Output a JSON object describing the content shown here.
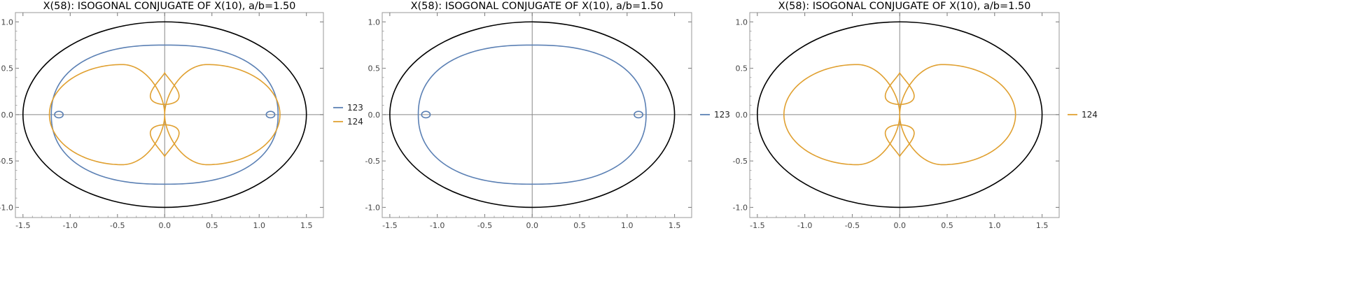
{
  "chart_data": [
    {
      "type": "line",
      "title": "X(58): ISOGONAL CONJUGATE OF X(10), a/b=1.50",
      "x_ticks": [
        "-1.5",
        "-1.0",
        "-0.5",
        "0.0",
        "0.5",
        "1.0",
        "1.5"
      ],
      "y_ticks": [
        "-1.0",
        "-0.5",
        "0.0",
        "0.5",
        "1.0"
      ],
      "xlim": [
        -1.58,
        1.68
      ],
      "ylim": [
        -1.11,
        1.1
      ],
      "grid": false,
      "legend_position": "right",
      "reference_ellipse": {
        "rx": 1.5,
        "ry": 1.0,
        "color": "#000000"
      },
      "series": [
        {
          "name": "123",
          "color": "#5b80b4",
          "type": "locus-123",
          "outer_rx": 1.2,
          "outer_ry": 0.75,
          "loops": [
            {
              "cx": -1.12,
              "cy": 0.0,
              "r": 0.035
            },
            {
              "cx": 1.12,
              "cy": 0.0,
              "r": 0.035
            }
          ]
        },
        {
          "name": "124",
          "color": "#e0a030",
          "type": "locus-124",
          "lobe_cx": 0.45,
          "lobe_ry": 0.54,
          "outer_x": 1.22,
          "inner_loop_top": 0.11,
          "inner_loop_peak": 0.45
        }
      ]
    },
    {
      "type": "line",
      "title": "X(58): ISOGONAL CONJUGATE OF X(10), a/b=1.50",
      "x_ticks": [
        "-1.5",
        "-1.0",
        "-0.5",
        "0.0",
        "0.5",
        "1.0",
        "1.5"
      ],
      "y_ticks": [
        "-1.0",
        "-0.5",
        "0.0",
        "0.5",
        "1.0"
      ],
      "xlim": [
        -1.58,
        1.68
      ],
      "ylim": [
        -1.11,
        1.1
      ],
      "grid": false,
      "legend_position": "right",
      "reference_ellipse": {
        "rx": 1.5,
        "ry": 1.0,
        "color": "#000000"
      },
      "series": [
        {
          "name": "123",
          "color": "#5b80b4",
          "type": "locus-123",
          "outer_rx": 1.2,
          "outer_ry": 0.75,
          "loops": [
            {
              "cx": -1.12,
              "cy": 0.0,
              "r": 0.035
            },
            {
              "cx": 1.12,
              "cy": 0.0,
              "r": 0.035
            }
          ]
        }
      ]
    },
    {
      "type": "line",
      "title": "X(58): ISOGONAL CONJUGATE OF X(10), a/b=1.50",
      "x_ticks": [
        "-1.5",
        "-1.0",
        "-0.5",
        "0.0",
        "0.5",
        "1.0",
        "1.5"
      ],
      "y_ticks": [
        "-1.0",
        "-0.5",
        "0.0",
        "0.5",
        "1.0"
      ],
      "xlim": [
        -1.58,
        1.68
      ],
      "ylim": [
        -1.11,
        1.1
      ],
      "grid": false,
      "legend_position": "right",
      "reference_ellipse": {
        "rx": 1.5,
        "ry": 1.0,
        "color": "#000000"
      },
      "series": [
        {
          "name": "124",
          "color": "#e0a030",
          "type": "locus-124",
          "lobe_cx": 0.45,
          "lobe_ry": 0.54,
          "outer_x": 1.22,
          "inner_loop_top": 0.11,
          "inner_loop_peak": 0.45
        }
      ]
    }
  ]
}
